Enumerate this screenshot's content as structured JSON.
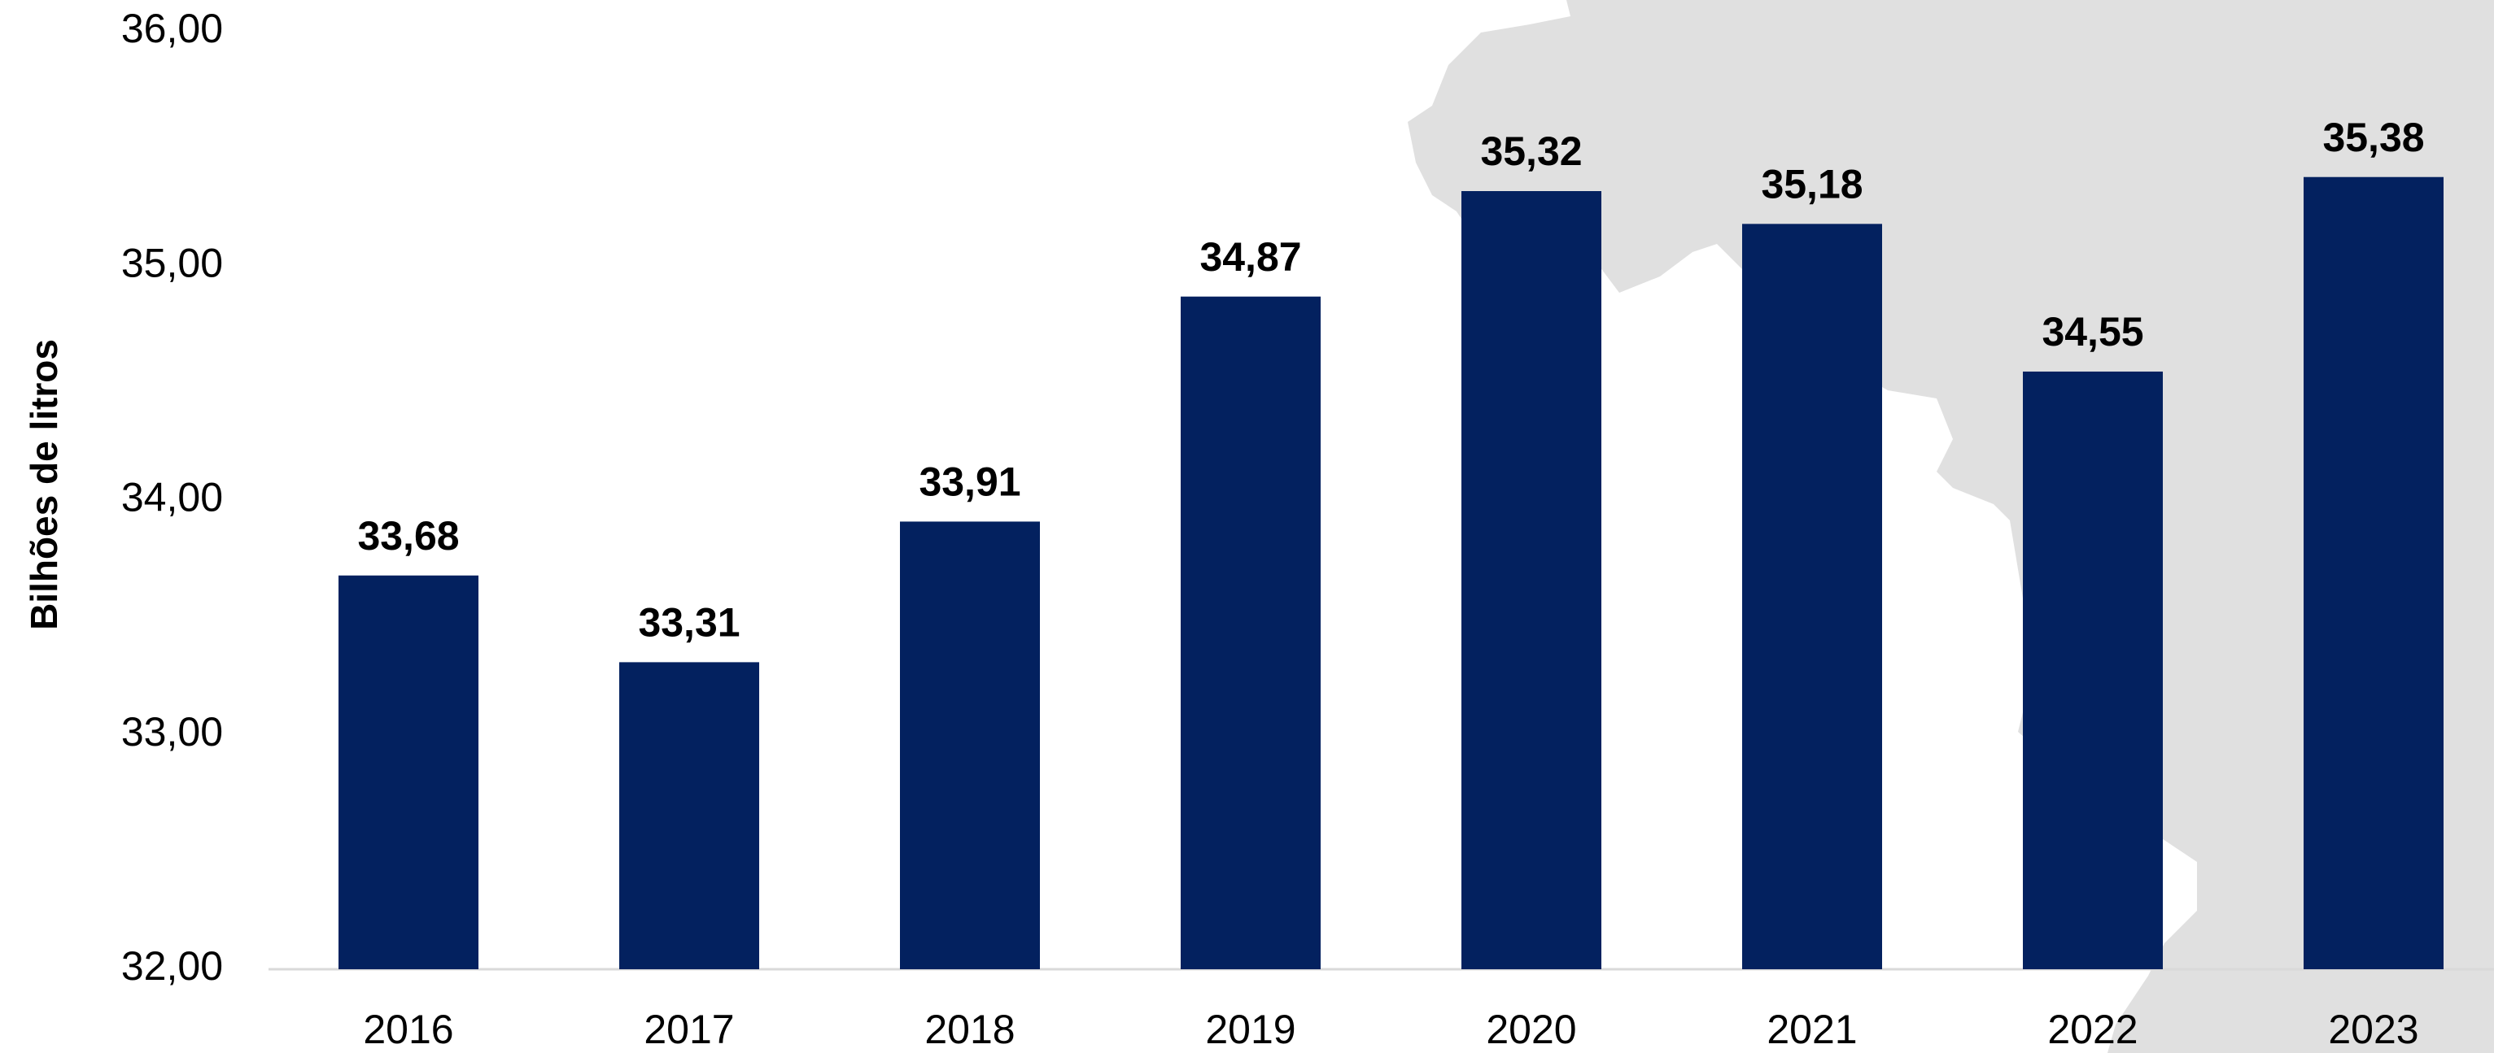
{
  "chart_data": {
    "type": "bar",
    "y_axis_label": "Bilhões de litros",
    "categories": [
      "2016",
      "2017",
      "2018",
      "2019",
      "2020",
      "2021",
      "2022",
      "2023"
    ],
    "values": [
      33.68,
      33.31,
      33.91,
      34.87,
      35.32,
      35.18,
      34.55,
      35.38
    ],
    "value_labels": [
      "33,68",
      "33,31",
      "33,91",
      "34,87",
      "35,32",
      "35,18",
      "34,55",
      "35,38"
    ],
    "color": "#03215f",
    "ylim": [
      32,
      36
    ],
    "yticks": [
      {
        "value": 32,
        "label": "32,00"
      },
      {
        "value": 33,
        "label": "33,00"
      },
      {
        "value": 34,
        "label": "34,00"
      },
      {
        "value": 35,
        "label": "35,00"
      },
      {
        "value": 36,
        "label": "36,00"
      }
    ],
    "grid": false
  }
}
